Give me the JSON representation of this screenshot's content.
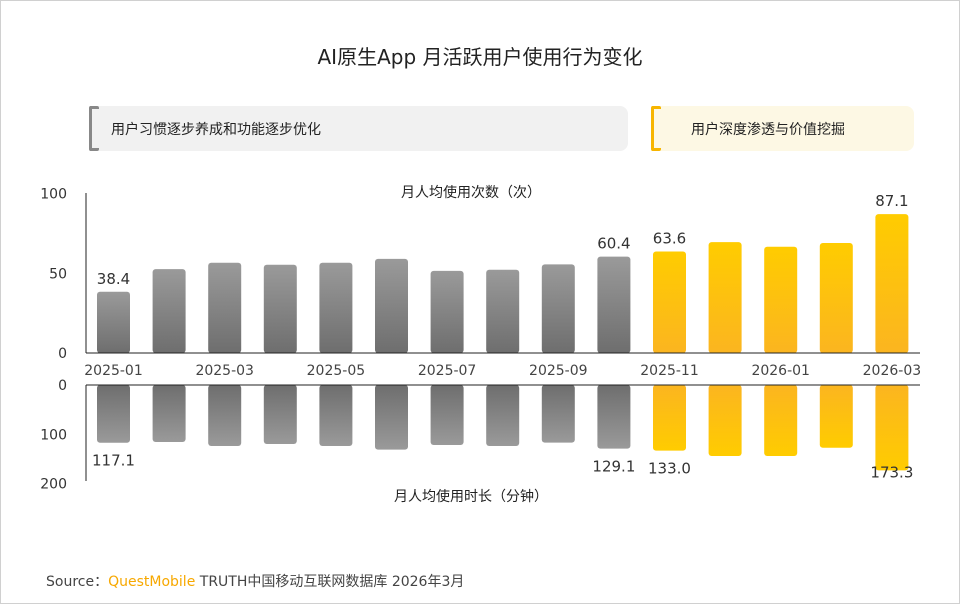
{
  "title": "AI原生App 月活跃用户使用行为变化",
  "phases": [
    {
      "label": "用户习惯逐步养成和功能逐步优化",
      "color": "#888888"
    },
    {
      "label": "用户深度渗透与价值挖掘",
      "color": "#f7b500"
    }
  ],
  "footer": {
    "prefix": "Source：",
    "brand": "QuestMobile",
    "text": " TRUTH中国移动互联网数据库 2026年3月"
  },
  "chart_data": [
    {
      "type": "bar",
      "title": "月人均使用次数（次）",
      "categories": [
        "2025-01",
        "2025-02",
        "2025-03",
        "2025-04",
        "2025-05",
        "2025-06",
        "2025-07",
        "2025-08",
        "2025-09",
        "2025-10",
        "2025-11",
        "2025-12",
        "2026-01",
        "2026-02",
        "2026-03"
      ],
      "tick_labels": [
        "2025-01",
        "2025-03",
        "2025-05",
        "2025-07",
        "2025-09",
        "2025-11",
        "2026-01",
        "2026-03"
      ],
      "values": [
        38.4,
        52.6,
        56.6,
        55.3,
        56.6,
        59.0,
        51.5,
        52.2,
        55.6,
        60.4,
        63.6,
        69.5,
        66.6,
        69.0,
        87.1
      ],
      "data_labels": {
        "0": "38.4",
        "9": "60.4",
        "10": "63.6",
        "14": "87.1"
      },
      "ylim": [
        0,
        100
      ],
      "yticks": [
        "0",
        "50",
        "100"
      ],
      "colors": {
        "phase1": "#8a8a8a",
        "phase2": "#fdc300"
      }
    },
    {
      "type": "bar",
      "title": "月人均使用时长（分钟）",
      "categories": [
        "2025-01",
        "2025-02",
        "2025-03",
        "2025-04",
        "2025-05",
        "2025-06",
        "2025-07",
        "2025-08",
        "2025-09",
        "2025-10",
        "2025-11",
        "2025-12",
        "2026-01",
        "2026-02",
        "2026-03"
      ],
      "values": [
        117.1,
        115.6,
        123.7,
        119.6,
        123.7,
        131.2,
        121.7,
        123.7,
        117.0,
        129.1,
        133.0,
        144.0,
        144.0,
        127.2,
        173.3
      ],
      "data_labels": {
        "0": "117.1",
        "9": "129.1",
        "10": "133.0",
        "14": "173.3"
      },
      "ylim": [
        0,
        200
      ],
      "yticks": [
        "0",
        "100",
        "200"
      ],
      "orientation": "downward",
      "colors": {
        "phase1": "#8a8a8a",
        "phase2": "#fdc300"
      }
    }
  ]
}
